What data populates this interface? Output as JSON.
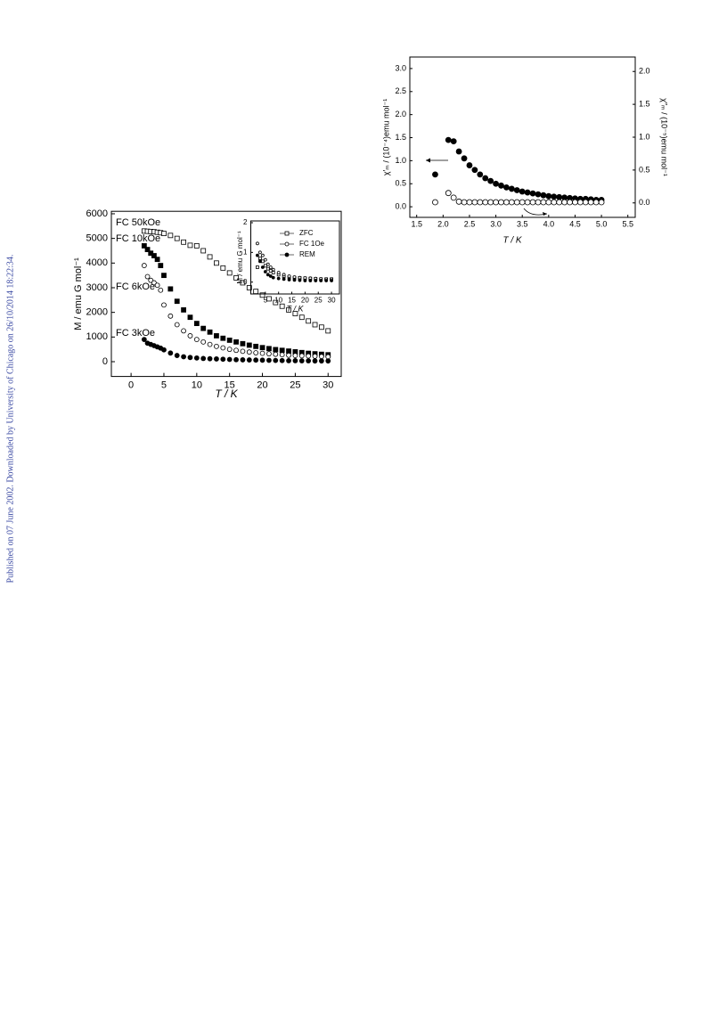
{
  "sidebar": "Published on 07 June 2002. Downloaded by University of Chicago on 26/10/2014 18:22:34.",
  "chart_data": [
    {
      "type": "scatter",
      "xlabel": "T / K",
      "ylabel": "M / emu G mol⁻¹",
      "xlim": [
        -3,
        32
      ],
      "ylim": [
        -600,
        6100
      ],
      "xticks": [
        0,
        5,
        10,
        15,
        20,
        25,
        30
      ],
      "yticks": [
        0,
        1000,
        2000,
        3000,
        4000,
        5000,
        6000
      ],
      "series": [
        {
          "name": "FC 50kOe",
          "marker": "open-square",
          "color": "#000000",
          "x": [
            2,
            2.5,
            3,
            3.5,
            4,
            4.5,
            5,
            6,
            7,
            8,
            9,
            10,
            11,
            12,
            13,
            14,
            15,
            16,
            17,
            18,
            19,
            20,
            21,
            22,
            23,
            24,
            25,
            26,
            27,
            28,
            29,
            30
          ],
          "values": [
            5300,
            5290,
            5280,
            5270,
            5250,
            5230,
            5200,
            5120,
            5000,
            4850,
            4720,
            4700,
            4500,
            4250,
            4000,
            3800,
            3600,
            3400,
            3200,
            3000,
            2850,
            2700,
            2550,
            2400,
            2250,
            2100,
            1950,
            1800,
            1650,
            1500,
            1400,
            1250
          ]
        },
        {
          "name": "FC 10kOe",
          "marker": "filled-square",
          "color": "#000000",
          "x": [
            2,
            2.5,
            3,
            3.5,
            4,
            4.5,
            5,
            6,
            7,
            8,
            9,
            10,
            11,
            12,
            13,
            14,
            15,
            16,
            17,
            18,
            19,
            20,
            21,
            22,
            23,
            24,
            25,
            26,
            27,
            28,
            29,
            30
          ],
          "values": [
            4700,
            4550,
            4400,
            4300,
            4150,
            3900,
            3500,
            2950,
            2450,
            2100,
            1800,
            1550,
            1350,
            1200,
            1050,
            950,
            870,
            800,
            730,
            670,
            620,
            570,
            530,
            490,
            460,
            430,
            400,
            370,
            340,
            320,
            300,
            280
          ]
        },
        {
          "name": "FC 6kOe",
          "marker": "open-circle",
          "color": "#000000",
          "x": [
            2,
            2.5,
            3,
            3.5,
            4,
            4.5,
            5,
            6,
            7,
            8,
            9,
            10,
            11,
            12,
            13,
            14,
            15,
            16,
            17,
            18,
            19,
            20,
            21,
            22,
            23,
            24,
            25,
            26,
            27,
            28,
            29,
            30
          ],
          "values": [
            3900,
            3450,
            3300,
            3200,
            3100,
            2900,
            2300,
            1850,
            1500,
            1250,
            1050,
            900,
            800,
            700,
            620,
            560,
            500,
            460,
            420,
            390,
            360,
            340,
            320,
            300,
            280,
            260,
            250,
            240,
            230,
            220,
            210,
            200
          ]
        },
        {
          "name": "FC 3kOe",
          "marker": "filled-circle",
          "color": "#000000",
          "x": [
            2,
            2.5,
            3,
            3.5,
            4,
            4.5,
            5,
            6,
            7,
            8,
            9,
            10,
            11,
            12,
            13,
            14,
            15,
            16,
            17,
            18,
            19,
            20,
            21,
            22,
            23,
            24,
            25,
            26,
            27,
            28,
            29,
            30
          ],
          "values": [
            900,
            750,
            700,
            650,
            600,
            550,
            480,
            350,
            250,
            200,
            170,
            150,
            130,
            120,
            110,
            100,
            90,
            80,
            75,
            70,
            65,
            60,
            55,
            50,
            45,
            40,
            40,
            35,
            35,
            30,
            30,
            30
          ]
        }
      ]
    },
    {
      "type": "scatter",
      "xlabel": "T / K",
      "ylabel": "M / emu G mol⁻¹",
      "xlim": [
        -0.5,
        33
      ],
      "ylim": [
        -0.4,
        2.06
      ],
      "xticks": [
        5,
        10,
        15,
        20,
        25,
        30
      ],
      "yticks": [
        0,
        1,
        2
      ],
      "legend": "upper right",
      "series": [
        {
          "name": "ZFC",
          "marker": "open-square",
          "color": "#000000",
          "x": [
            2,
            3,
            4,
            5,
            6,
            7,
            8,
            10,
            12,
            14,
            16,
            18,
            20,
            22,
            24,
            26,
            28,
            30
          ],
          "values": [
            0.5,
            0.8,
            0.7,
            0.55,
            0.45,
            0.38,
            0.32,
            0.25,
            0.2,
            0.17,
            0.15,
            0.14,
            0.13,
            0.12,
            0.11,
            0.1,
            0.1,
            0.1
          ]
        },
        {
          "name": "FC 1Oe",
          "marker": "open-circle",
          "color": "#000000",
          "x": [
            2,
            3,
            4,
            5,
            6,
            7,
            8,
            10,
            12,
            14,
            16,
            18,
            20,
            22,
            24,
            26,
            28,
            30
          ],
          "values": [
            1.3,
            1.0,
            0.9,
            0.75,
            0.6,
            0.5,
            0.42,
            0.32,
            0.25,
            0.2,
            0.17,
            0.15,
            0.14,
            0.13,
            0.12,
            0.11,
            0.1,
            0.1
          ]
        },
        {
          "name": "REM",
          "marker": "filled-circle",
          "color": "#000000",
          "x": [
            2,
            3,
            4,
            5,
            6,
            7,
            8,
            10,
            12,
            14,
            16,
            18,
            20,
            22,
            24,
            26,
            28,
            30
          ],
          "values": [
            0.9,
            0.7,
            0.5,
            0.35,
            0.25,
            0.2,
            0.15,
            0.12,
            0.1,
            0.08,
            0.07,
            0.06,
            0.05,
            0.05,
            0.05,
            0.05,
            0.05,
            0.05
          ]
        }
      ]
    },
    {
      "type": "scatter",
      "xlabel": "T / K",
      "ylabel": "χ′ₘ / (10⁻⁴)emu mol⁻¹",
      "y2label": "χ″ₘ / (10⁻⁵)emu mol⁻¹",
      "xlim": [
        1.37,
        5.64
      ],
      "ylim": [
        -0.23,
        3.25
      ],
      "y2lim": [
        -0.22,
        2.22
      ],
      "xticks": [
        1.5,
        {
          "value": 2,
          "label": "2.0"
        },
        2.5,
        {
          "value": 3,
          "label": "3.0"
        },
        3.5,
        {
          "value": 4,
          "label": "4.0"
        },
        4.5,
        {
          "value": 5,
          "label": "5.0"
        },
        5.5
      ],
      "yticks": [
        {
          "value": 0,
          "label": "0.0"
        },
        0.5,
        {
          "value": 1,
          "label": "1.0"
        },
        1.5,
        {
          "value": 2,
          "label": "2.0"
        },
        2.5,
        {
          "value": 3,
          "label": "3.0"
        }
      ],
      "y2ticks": [
        {
          "value": 0,
          "label": "0.0"
        },
        0.5,
        {
          "value": 1,
          "label": "1.0"
        },
        1.5,
        {
          "value": 2,
          "label": "2.0"
        }
      ],
      "series": [
        {
          "marker": "filled-circle",
          "color": "#000000",
          "x": [
            1.85,
            2.1,
            2.2,
            2.3,
            2.4,
            2.5,
            2.6,
            2.7,
            2.8,
            2.9,
            3.0,
            3.1,
            3.2,
            3.3,
            3.4,
            3.5,
            3.6,
            3.7,
            3.8,
            3.9,
            4.0,
            4.1,
            4.2,
            4.3,
            4.4,
            4.5,
            4.6,
            4.7,
            4.8,
            4.9,
            5.0
          ],
          "values": [
            0.7,
            1.45,
            1.42,
            1.2,
            1.05,
            0.9,
            0.8,
            0.7,
            0.62,
            0.56,
            0.5,
            0.46,
            0.42,
            0.39,
            0.36,
            0.33,
            0.31,
            0.29,
            0.27,
            0.25,
            0.23,
            0.22,
            0.21,
            0.2,
            0.19,
            0.18,
            0.17,
            0.17,
            0.16,
            0.15,
            0.15
          ]
        },
        {
          "marker": "open-circle",
          "color": "#000000",
          "axis": "y2",
          "x": [
            1.85,
            2.1,
            2.2,
            2.3,
            2.4,
            2.5,
            2.6,
            2.7,
            2.8,
            2.9,
            3.0,
            3.1,
            3.2,
            3.3,
            3.4,
            3.5,
            3.6,
            3.7,
            3.8,
            3.9,
            4.0,
            4.1,
            4.2,
            4.3,
            4.4,
            4.5,
            4.6,
            4.7,
            4.8,
            4.9,
            5.0
          ],
          "values": [
            0.01,
            0.15,
            0.08,
            0.02,
            0.01,
            0.01,
            0.01,
            0.01,
            0.01,
            0.01,
            0.01,
            0.01,
            0.01,
            0.01,
            0.01,
            0.01,
            0.01,
            0.01,
            0.01,
            0.01,
            0.01,
            0.01,
            0.01,
            0.01,
            0.01,
            0.01,
            0.01,
            0.01,
            0.01,
            0.01,
            0.01
          ]
        }
      ]
    }
  ]
}
